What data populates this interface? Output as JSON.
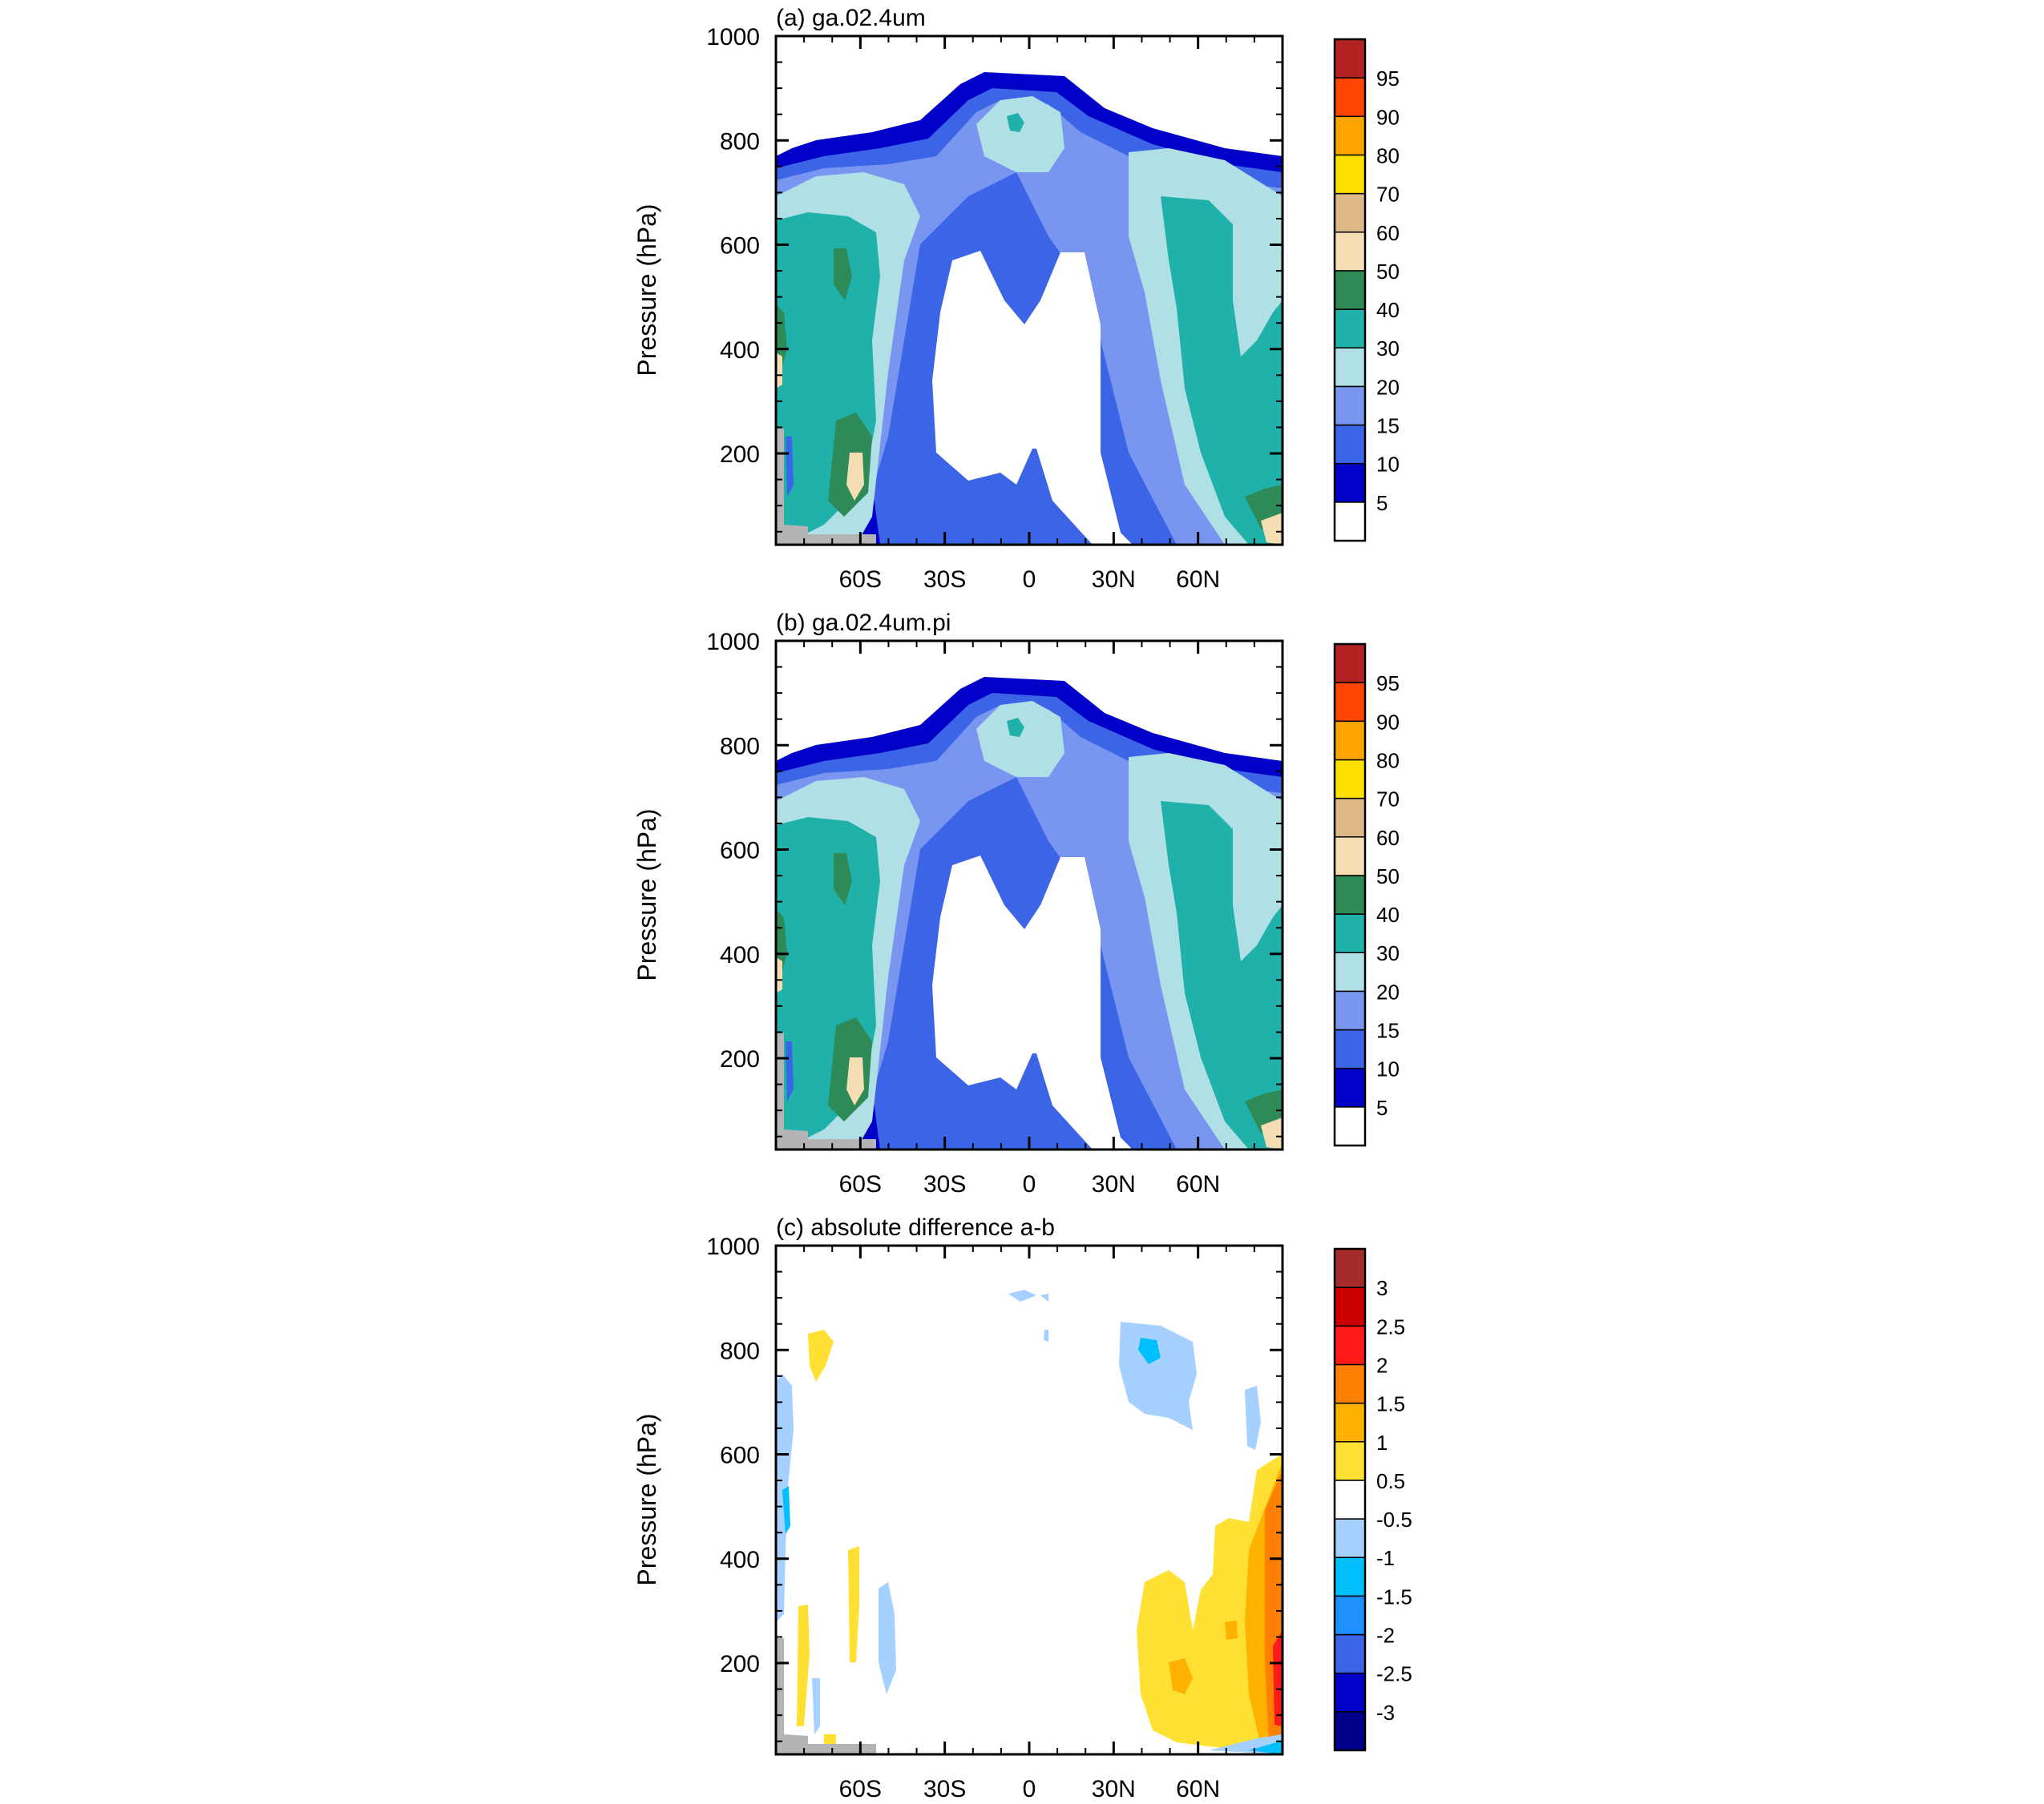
{
  "chart_data": [
    {
      "type": "contour",
      "title": "(a) ga.02.4um",
      "ylabel": "Pressure (hPa)",
      "xlabel": "",
      "x_ticks": [
        "60S",
        "30S",
        "0",
        "30N",
        "60N"
      ],
      "x_tick_values": [
        -60,
        -30,
        0,
        30,
        60
      ],
      "xlim": [
        -90,
        90
      ],
      "y_ticks": [
        "200",
        "400",
        "600",
        "800",
        "1000"
      ],
      "y_tick_values": [
        200,
        400,
        600,
        800,
        1000
      ],
      "ylim": [
        1000,
        25
      ],
      "colorbar": {
        "labels": [
          "5",
          "10",
          "15",
          "20",
          "30",
          "40",
          "50",
          "60",
          "70",
          "80",
          "90",
          "95"
        ],
        "colors": [
          "#ffffff",
          "#0000c8",
          "#3c64e6",
          "#7896f0",
          "#b0e0e6",
          "#20b2aa",
          "#2e8b57",
          "#f5deb3",
          "#deb887",
          "#ffdf00",
          "#ffa500",
          "#ff4500",
          "#b22222"
        ]
      }
    },
    {
      "type": "contour",
      "title": "(b) ga.02.4um.pi",
      "ylabel": "Pressure (hPa)",
      "xlabel": "",
      "x_ticks": [
        "60S",
        "30S",
        "0",
        "30N",
        "60N"
      ],
      "x_tick_values": [
        -60,
        -30,
        0,
        30,
        60
      ],
      "xlim": [
        -90,
        90
      ],
      "y_ticks": [
        "200",
        "400",
        "600",
        "800",
        "1000"
      ],
      "y_tick_values": [
        200,
        400,
        600,
        800,
        1000
      ],
      "ylim": [
        1000,
        25
      ],
      "colorbar": {
        "labels": [
          "5",
          "10",
          "15",
          "20",
          "30",
          "40",
          "50",
          "60",
          "70",
          "80",
          "90",
          "95"
        ],
        "colors": [
          "#ffffff",
          "#0000c8",
          "#3c64e6",
          "#7896f0",
          "#b0e0e6",
          "#20b2aa",
          "#2e8b57",
          "#f5deb3",
          "#deb887",
          "#ffdf00",
          "#ffa500",
          "#ff4500",
          "#b22222"
        ]
      }
    },
    {
      "type": "contour",
      "title": "(c) absolute difference a-b",
      "ylabel": "Pressure (hPa)",
      "xlabel": "",
      "x_ticks": [
        "60S",
        "30S",
        "0",
        "30N",
        "60N"
      ],
      "x_tick_values": [
        -60,
        -30,
        0,
        30,
        60
      ],
      "xlim": [
        -90,
        90
      ],
      "y_ticks": [
        "200",
        "400",
        "600",
        "800",
        "1000"
      ],
      "y_tick_values": [
        200,
        400,
        600,
        800,
        1000
      ],
      "ylim": [
        1000,
        25
      ],
      "colorbar": {
        "labels": [
          "3",
          "2.5",
          "2",
          "1.5",
          "1",
          "0.5",
          "-0.5",
          "-1",
          "-1.5",
          "-2",
          "-2.5",
          "-3"
        ],
        "colors": [
          "#a52a2a",
          "#cd0000",
          "#ff1a1a",
          "#ff7f00",
          "#ffb300",
          "#ffe033",
          "#ffffff",
          "#a6d0ff",
          "#00bfff",
          "#1e90ff",
          "#3c64e6",
          "#0000c8",
          "#00008b"
        ]
      }
    }
  ],
  "colors": {
    "land_mask": "#b4b4b4",
    "frame": "#000000"
  }
}
